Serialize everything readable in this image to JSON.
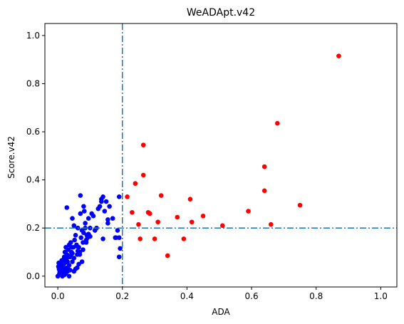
{
  "chart_data": {
    "type": "scatter",
    "title": "WeADApt.v42",
    "xlabel": "ADA",
    "ylabel": "Score.v42",
    "xlim": [
      -0.04,
      1.05
    ],
    "ylim": [
      -0.045,
      1.05
    ],
    "xticks": [
      "0.0",
      "0.2",
      "0.4",
      "0.6",
      "0.8",
      "1.0"
    ],
    "yticks": [
      "0.0",
      "0.2",
      "0.4",
      "0.6",
      "0.8",
      "1.0"
    ],
    "xtick_values": [
      0.0,
      0.2,
      0.4,
      0.6,
      0.8,
      1.0
    ],
    "ytick_values": [
      0.0,
      0.2,
      0.4,
      0.6,
      0.8,
      1.0
    ],
    "grid": false,
    "thresholds": {
      "x": 0.2,
      "y": 0.2,
      "style": "dash-dot",
      "color": "#1f77b4"
    },
    "series": [
      {
        "color": "#0000ff",
        "x": [
          0.0,
          0.005,
          0.01,
          0.002,
          0.008,
          0.012,
          0.015,
          0.018,
          0.003,
          0.006,
          0.02,
          0.022,
          0.025,
          0.028,
          0.03,
          0.004,
          0.01,
          0.014,
          0.016,
          0.019,
          0.024,
          0.026,
          0.032,
          0.035,
          0.038,
          0.04,
          0.042,
          0.045,
          0.048,
          0.05,
          0.052,
          0.055,
          0.058,
          0.06,
          0.062,
          0.065,
          0.068,
          0.07,
          0.072,
          0.075,
          0.078,
          0.08,
          0.082,
          0.085,
          0.088,
          0.09,
          0.092,
          0.095,
          0.1,
          0.105,
          0.11,
          0.115,
          0.12,
          0.125,
          0.13,
          0.135,
          0.14,
          0.145,
          0.15,
          0.155,
          0.16,
          0.17,
          0.18,
          0.185,
          0.19,
          0.193,
          0.028,
          0.045,
          0.07,
          0.08,
          0.095,
          0.135,
          0.14,
          0.155,
          0.012,
          0.022,
          0.035,
          0.05,
          0.06,
          0.075,
          0.085,
          0.1,
          0.015,
          0.03,
          0.04,
          0.055,
          0.065,
          0.02,
          0.01,
          0.005,
          0.025,
          0.035,
          0.045,
          0.018,
          0.028,
          0.038,
          0.058,
          0.068,
          0.078,
          0.088,
          0.19,
          0.19,
          0.178,
          0.012,
          0.03,
          0.042,
          0.05,
          0.062
        ],
        "y": [
          0.0,
          0.01,
          0.02,
          0.04,
          0.05,
          0.06,
          0.03,
          0.07,
          0.055,
          0.015,
          0.08,
          0.1,
          0.12,
          0.09,
          0.06,
          0.03,
          0.04,
          0.0,
          0.05,
          0.02,
          0.01,
          0.03,
          0.11,
          0.13,
          0.08,
          0.14,
          0.1,
          0.06,
          0.12,
          0.02,
          0.15,
          0.17,
          0.13,
          0.09,
          0.2,
          0.12,
          0.1,
          0.26,
          0.16,
          0.19,
          0.14,
          0.18,
          0.27,
          0.22,
          0.15,
          0.17,
          0.16,
          0.24,
          0.2,
          0.26,
          0.25,
          0.19,
          0.2,
          0.28,
          0.29,
          0.31,
          0.33,
          0.27,
          0.31,
          0.22,
          0.29,
          0.24,
          0.16,
          0.19,
          0.33,
          0.115,
          0.285,
          0.24,
          0.335,
          0.29,
          0.175,
          0.32,
          0.155,
          0.235,
          0.035,
          0.055,
          0.0,
          0.075,
          0.035,
          0.06,
          0.2,
          0.165,
          0.055,
          0.02,
          0.085,
          0.03,
          0.05,
          0.005,
          0.015,
          0.025,
          0.065,
          0.045,
          0.095,
          0.04,
          0.075,
          0.025,
          0.125,
          0.09,
          0.11,
          0.14,
          0.16,
          0.08,
          0.16,
          0.065,
          0.035,
          0.12,
          0.21,
          0.105
        ]
      },
      {
        "color": "#ff0000",
        "x": [
          0.87,
          0.68,
          0.265,
          0.64,
          0.265,
          0.24,
          0.64,
          0.215,
          0.41,
          0.32,
          0.37,
          0.75,
          0.59,
          0.23,
          0.45,
          0.28,
          0.285,
          0.415,
          0.25,
          0.31,
          0.51,
          0.66,
          0.3,
          0.39,
          0.255,
          0.34
        ],
        "y": [
          0.915,
          0.635,
          0.545,
          0.455,
          0.42,
          0.385,
          0.355,
          0.33,
          0.32,
          0.335,
          0.245,
          0.295,
          0.27,
          0.265,
          0.25,
          0.265,
          0.26,
          0.225,
          0.215,
          0.225,
          0.21,
          0.215,
          0.155,
          0.155,
          0.155,
          0.085
        ]
      }
    ]
  }
}
